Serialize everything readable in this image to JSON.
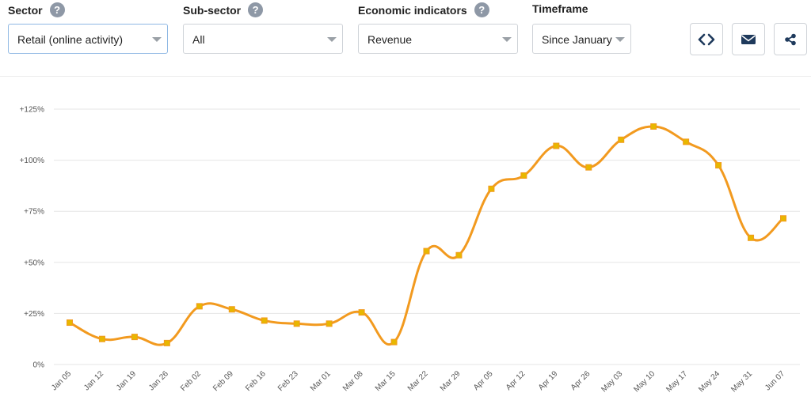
{
  "filters": {
    "sector": {
      "label": "Sector",
      "value": "Retail (online activity)"
    },
    "subsector": {
      "label": "Sub-sector",
      "value": "All"
    },
    "indicator": {
      "label": "Economic indicators",
      "value": "Revenue"
    },
    "timeframe": {
      "label": "Timeframe",
      "value": "Since January"
    }
  },
  "help_glyph": "?",
  "toolbar": {
    "embed_icon": "code-icon",
    "email_icon": "envelope-icon",
    "share_icon": "share-icon"
  },
  "colors": {
    "line": "#f29a1f",
    "marker": "#e8b700",
    "grid": "#e6e6e6",
    "help": "#8e98a6",
    "button_icon": "#1f3a5c"
  },
  "chart_data": {
    "type": "line",
    "categories": [
      "Jan 05",
      "Jan 12",
      "Jan 19",
      "Jan 26",
      "Feb 02",
      "Feb 09",
      "Feb 16",
      "Feb 23",
      "Mar 01",
      "Mar 08",
      "Mar 15",
      "Mar 22",
      "Mar 29",
      "Apr 05",
      "Apr 12",
      "Apr 19",
      "Apr 26",
      "May 03",
      "May 10",
      "May 17",
      "May 24",
      "May 31",
      "Jun 07"
    ],
    "series": [
      {
        "values": [
          20.5,
          12.5,
          13.5,
          10.5,
          28.5,
          27,
          21.5,
          20,
          20,
          25.5,
          11,
          55.5,
          53.5,
          86,
          92.5,
          107,
          96.5,
          110,
          116.5,
          109,
          97.5,
          62,
          71.5
        ]
      }
    ],
    "ylim": [
      0,
      125
    ],
    "yticks": [
      0,
      25,
      50,
      75,
      100,
      125
    ],
    "ytick_labels": [
      "0%",
      "+25%",
      "+50%",
      "+75%",
      "+100%",
      "+125%"
    ],
    "grid": true,
    "title": "",
    "xlabel": "",
    "ylabel": ""
  }
}
